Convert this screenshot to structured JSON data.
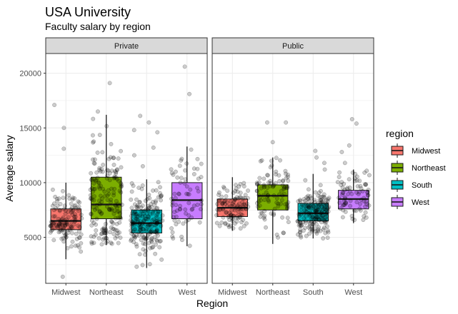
{
  "chart_data": {
    "type": "boxplot",
    "title": "USA University",
    "subtitle": "Faculty salary by region",
    "xlabel": "Region",
    "ylabel": "Average salary",
    "ylim": [
      800,
      21800
    ],
    "yticks": [
      5000,
      10000,
      15000,
      20000
    ],
    "grid": true,
    "legend_position": "right",
    "categories": [
      "Midwest",
      "Northeast",
      "South",
      "West"
    ],
    "legend": {
      "title": "region",
      "items": [
        {
          "label": "Midwest",
          "color": "#F8766D"
        },
        {
          "label": "Northeast",
          "color": "#7CAE00"
        },
        {
          "label": "South",
          "color": "#00BFC4"
        },
        {
          "label": "West",
          "color": "#C77CFF"
        }
      ]
    },
    "panels": [
      {
        "label": "Private",
        "boxes": [
          {
            "category": "Midwest",
            "min": 3000,
            "q1": 5700,
            "median": 6500,
            "q3": 7600,
            "max": 10000,
            "outliers": [
              1400,
              13100,
              15000,
              17100
            ],
            "n": 130
          },
          {
            "category": "Northeast",
            "min": 4300,
            "q1": 6700,
            "median": 8000,
            "q3": 10500,
            "max": 16200,
            "outliers": [
              16500,
              19100
            ],
            "n": 180
          },
          {
            "category": "South",
            "min": 2200,
            "q1": 5400,
            "median": 6300,
            "q3": 7500,
            "max": 10300,
            "outliers": [
              11500,
              12500,
              13200,
              14600,
              14800,
              15500,
              16100
            ],
            "n": 200
          },
          {
            "category": "West",
            "min": 4200,
            "q1": 6700,
            "median": 8400,
            "q3": 10000,
            "max": 13300,
            "outliers": [
              18100,
              20600
            ],
            "n": 70
          }
        ]
      },
      {
        "label": "Public",
        "boxes": [
          {
            "category": "Midwest",
            "min": 5600,
            "q1": 6900,
            "median": 7700,
            "q3": 8500,
            "max": 10500,
            "outliers": [],
            "n": 110
          },
          {
            "category": "Northeast",
            "min": 4400,
            "q1": 7500,
            "median": 8800,
            "q3": 9800,
            "max": 12300,
            "outliers": [
              13700,
              15500,
              15500
            ],
            "n": 100
          },
          {
            "category": "South",
            "min": 4900,
            "q1": 6500,
            "median": 7200,
            "q3": 8100,
            "max": 10800,
            "outliers": [
              11200,
              11800,
              12300,
              12900
            ],
            "n": 190
          },
          {
            "category": "West",
            "min": 6300,
            "q1": 7600,
            "median": 8500,
            "q3": 9300,
            "max": 11200,
            "outliers": [
              11800,
              12800,
              13400,
              15400,
              15800
            ],
            "n": 80
          }
        ]
      }
    ]
  }
}
